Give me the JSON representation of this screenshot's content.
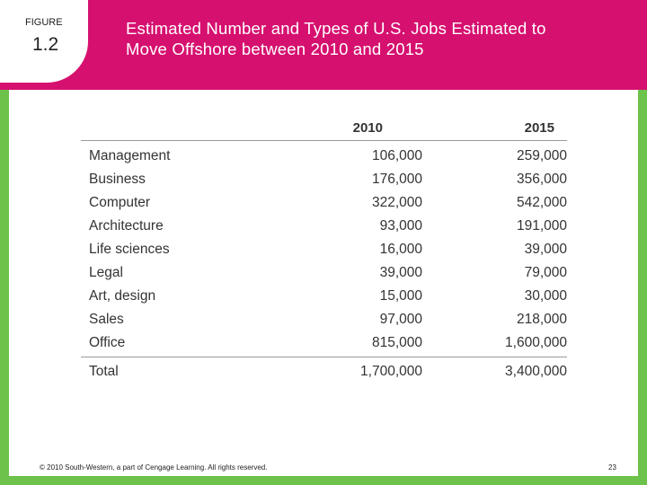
{
  "figure": {
    "label": "FIGURE",
    "number": "1.2"
  },
  "title": {
    "line1": "Estimated Number and Types of U.S. Jobs Estimated to",
    "line2": "Move Offshore between 2010 and 2015"
  },
  "colors": {
    "header_band": "#d6106f",
    "frame": "#6cc24a",
    "text": "#333333"
  },
  "table": {
    "columns": [
      "2010",
      "2015"
    ],
    "rows": [
      {
        "category": "Management",
        "y2010": "106,000",
        "y2015": "259,000"
      },
      {
        "category": "Business",
        "y2010": "176,000",
        "y2015": "356,000"
      },
      {
        "category": "Computer",
        "y2010": "322,000",
        "y2015": "542,000"
      },
      {
        "category": "Architecture",
        "y2010": "93,000",
        "y2015": "191,000"
      },
      {
        "category": "Life sciences",
        "y2010": "16,000",
        "y2015": "39,000"
      },
      {
        "category": "Legal",
        "y2010": "39,000",
        "y2015": "79,000"
      },
      {
        "category": "Art, design",
        "y2010": "15,000",
        "y2015": "30,000"
      },
      {
        "category": "Sales",
        "y2010": "97,000",
        "y2015": "218,000"
      },
      {
        "category": "Office",
        "y2010": "815,000",
        "y2015": "1,600,000"
      }
    ],
    "total": {
      "category": "Total",
      "y2010": "1,700,000",
      "y2015": "3,400,000"
    }
  },
  "footer": {
    "copyright": "© 2010 South-Western, a part of Cengage Learning. All rights reserved.",
    "page_number": "23"
  }
}
